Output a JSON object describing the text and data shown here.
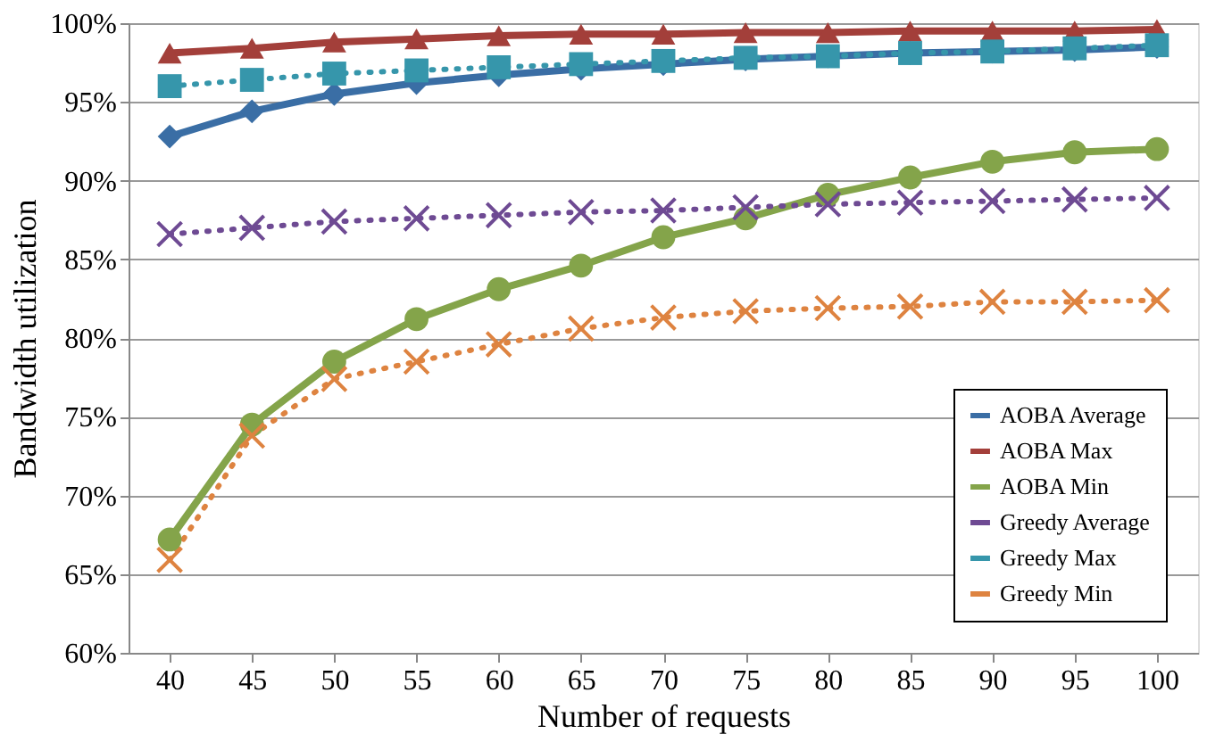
{
  "chart_data": {
    "type": "line",
    "xlabel": "Number of requests",
    "ylabel": "Bandwidth utilization",
    "categories": [
      "40",
      "45",
      "50",
      "55",
      "60",
      "65",
      "70",
      "75",
      "80",
      "85",
      "90",
      "95",
      "100"
    ],
    "ylim": [
      60,
      100
    ],
    "yticks": [
      {
        "value": 60,
        "label": "60%"
      },
      {
        "value": 65,
        "label": "65%"
      },
      {
        "value": 70,
        "label": "70%"
      },
      {
        "value": 75,
        "label": "75%"
      },
      {
        "value": 80,
        "label": "80%"
      },
      {
        "value": 85,
        "label": "85%"
      },
      {
        "value": 90,
        "label": "90%"
      },
      {
        "value": 95,
        "label": "95%"
      },
      {
        "value": 100,
        "label": "100%"
      }
    ],
    "grid": "y",
    "legend": "bottom right",
    "series": [
      {
        "name": "AOBA Average",
        "color": "#3a6ea5",
        "marker": "diamond",
        "line_style": "solid",
        "values": [
          92.8,
          94.4,
          95.5,
          96.2,
          96.7,
          97.1,
          97.4,
          97.7,
          97.9,
          98.1,
          98.2,
          98.3,
          98.5
        ]
      },
      {
        "name": "AOBA Max",
        "color": "#a33f3a",
        "marker": "triangle",
        "line_style": "solid",
        "values": [
          98.1,
          98.4,
          98.8,
          99.0,
          99.2,
          99.3,
          99.3,
          99.4,
          99.4,
          99.5,
          99.5,
          99.5,
          99.6
        ]
      },
      {
        "name": "AOBA Min",
        "color": "#84a44a",
        "marker": "circle",
        "line_style": "solid",
        "values": [
          67.2,
          74.5,
          78.5,
          81.2,
          83.1,
          84.6,
          86.4,
          87.6,
          89.1,
          90.2,
          91.2,
          91.8,
          92.0
        ]
      },
      {
        "name": "Greedy Average",
        "color": "#6e4a93",
        "marker": "cross",
        "line_style": "dotted",
        "values": [
          86.6,
          87.0,
          87.4,
          87.6,
          87.8,
          88.0,
          88.1,
          88.3,
          88.5,
          88.6,
          88.7,
          88.8,
          88.9
        ]
      },
      {
        "name": "Greedy Max",
        "color": "#3696ab",
        "marker": "square",
        "line_style": "dotted",
        "values": [
          96.0,
          96.4,
          96.8,
          97.0,
          97.2,
          97.4,
          97.6,
          97.8,
          97.9,
          98.1,
          98.2,
          98.4,
          98.6
        ]
      },
      {
        "name": "Greedy Min",
        "color": "#de8340",
        "marker": "cross",
        "line_style": "dotted",
        "values": [
          65.9,
          73.8,
          77.4,
          78.5,
          79.6,
          80.6,
          81.3,
          81.7,
          81.9,
          82.0,
          82.3,
          82.3,
          82.4
        ]
      }
    ]
  }
}
